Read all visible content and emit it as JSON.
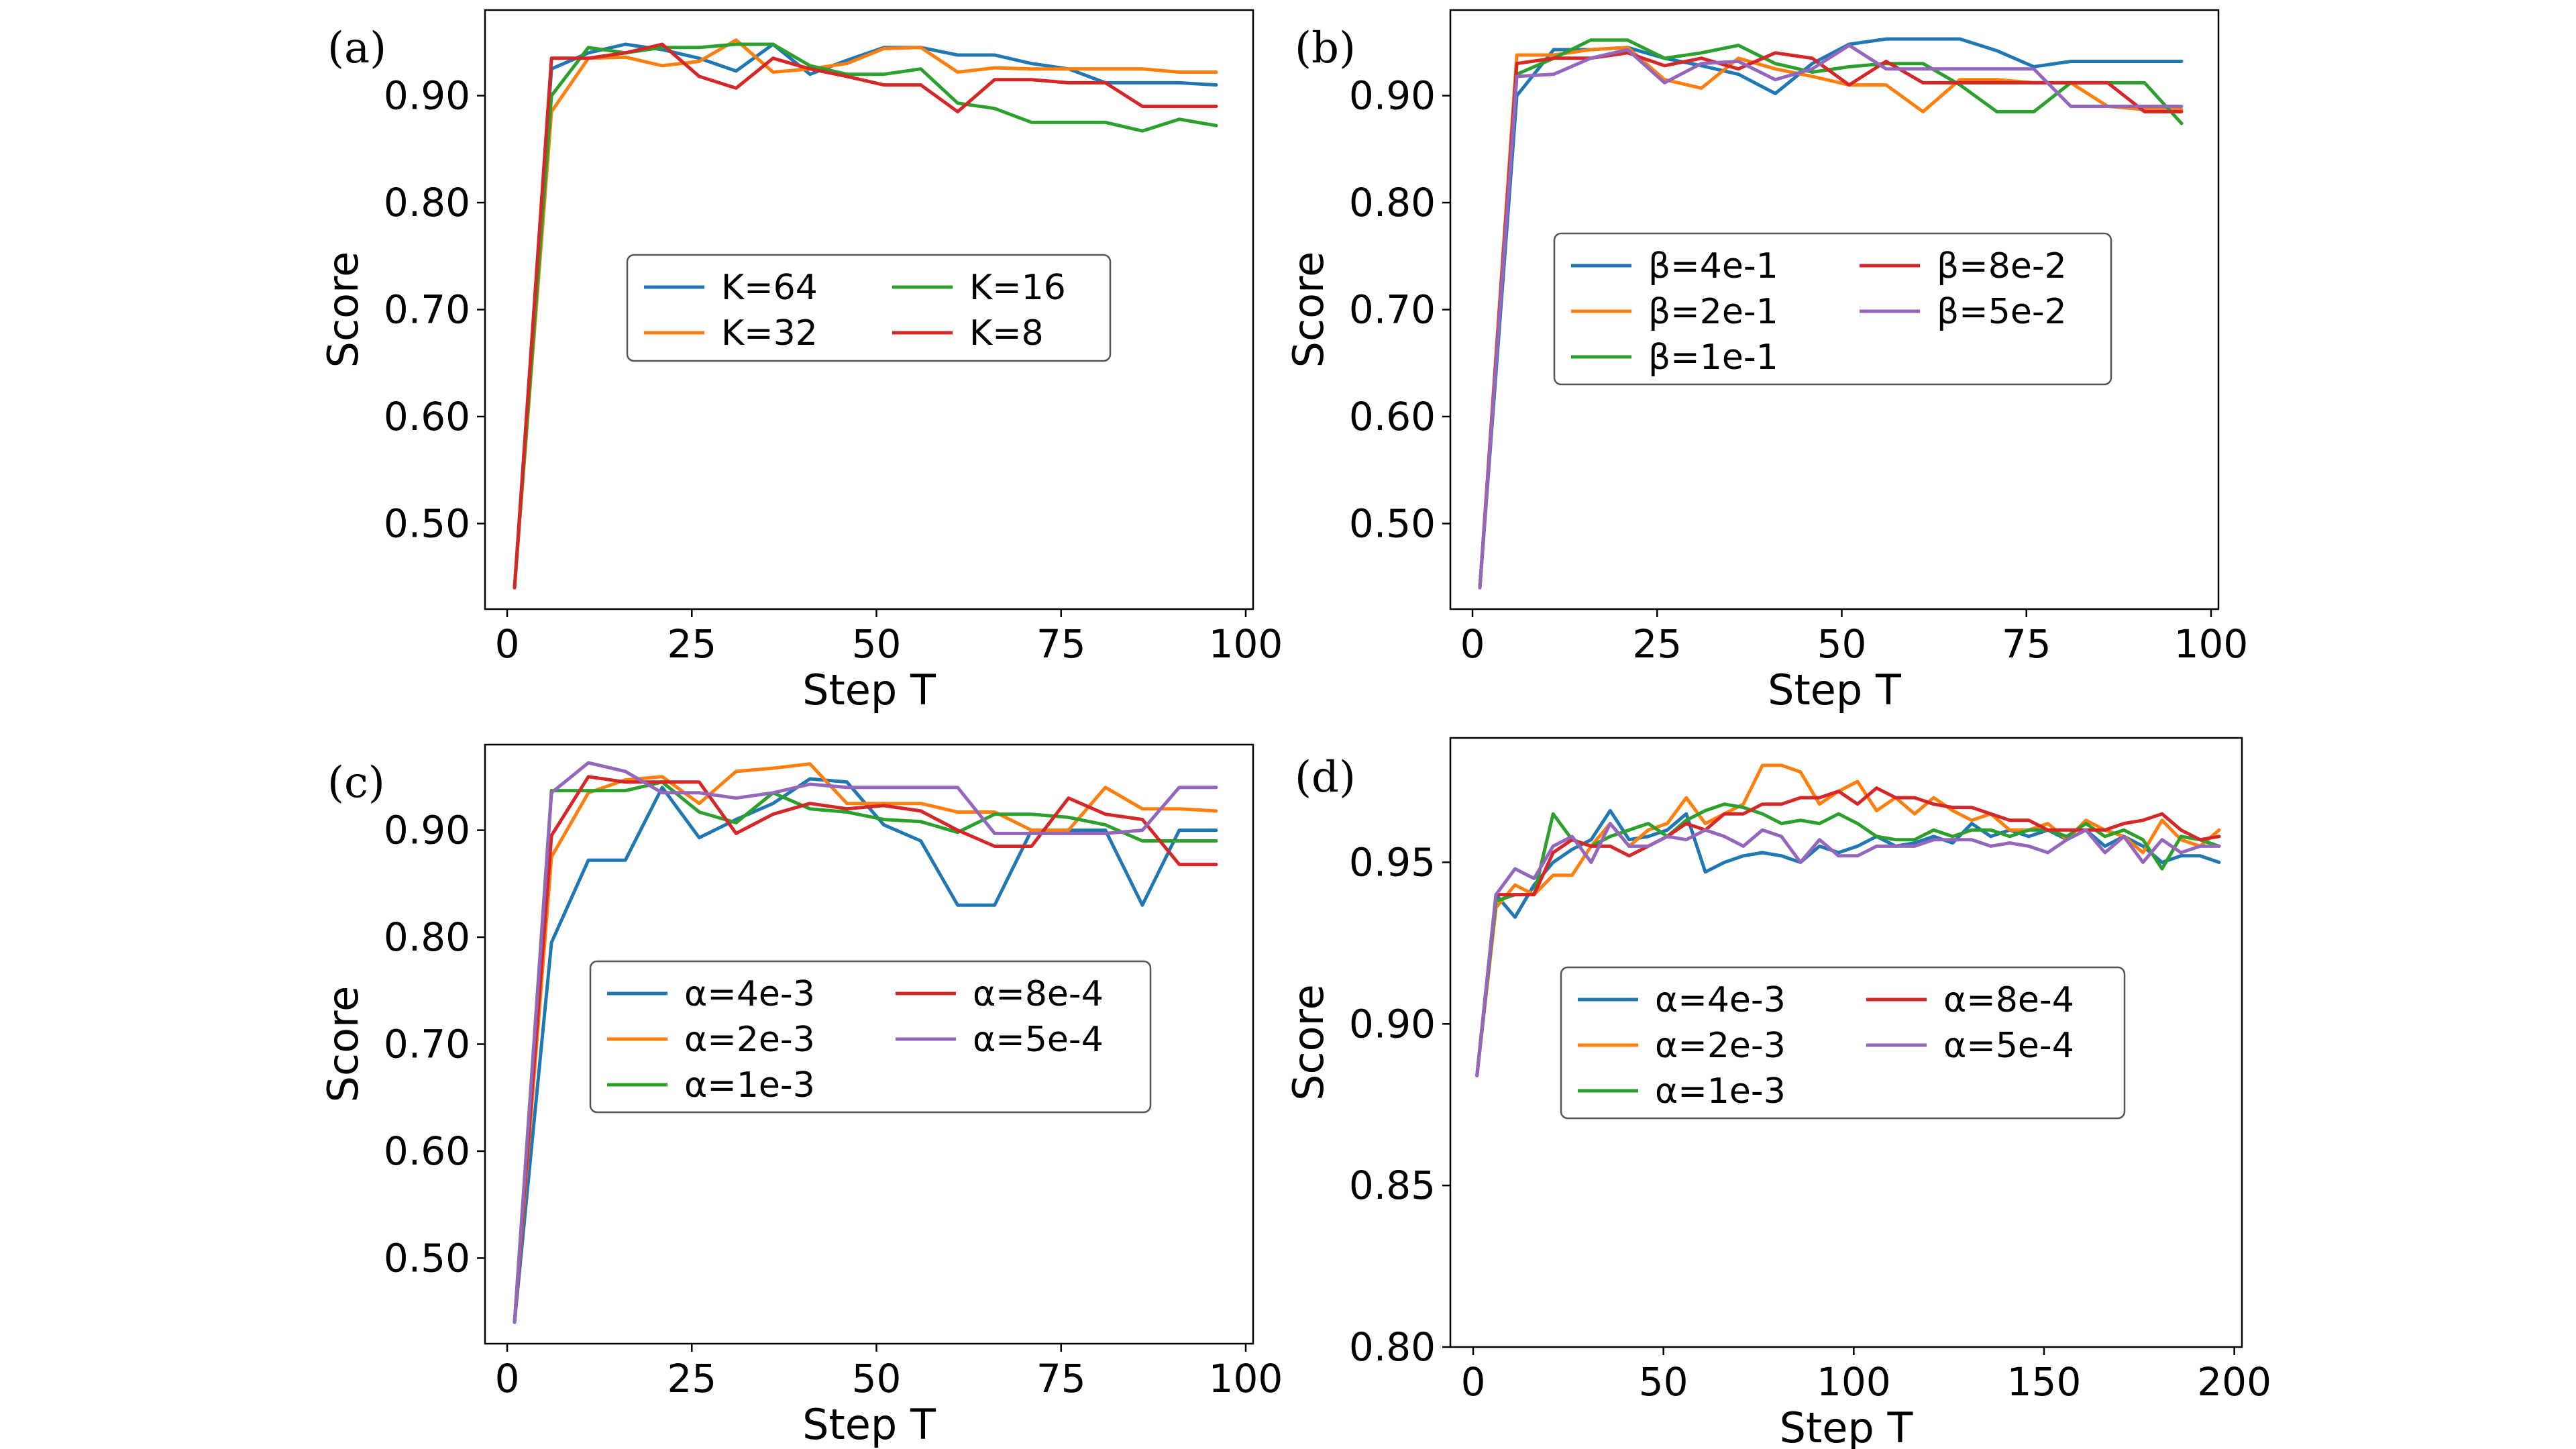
{
  "colors": {
    "blue": "#1f77b4",
    "orange": "#ff7f0e",
    "green": "#2ca02c",
    "red": "#d62728",
    "purple": "#9467bd"
  },
  "chart_data": [
    {
      "panel": "(a)",
      "type": "line",
      "xlabel": "Step T",
      "ylabel": "Score",
      "xlim": [
        -3,
        101
      ],
      "ylim": [
        0.42,
        0.98
      ],
      "xticks": [
        0,
        25,
        50,
        75,
        100
      ],
      "yticks": [
        0.5,
        0.6,
        0.7,
        0.8,
        0.9
      ],
      "ytick_labels": [
        "0.50",
        "0.60",
        "0.70",
        "0.80",
        "0.90"
      ],
      "legend_position": "center",
      "legend_columns": 2,
      "x": [
        1,
        6,
        11,
        16,
        21,
        26,
        31,
        36,
        41,
        46,
        51,
        56,
        61,
        66,
        71,
        76,
        81,
        86,
        91,
        96
      ],
      "series": [
        {
          "name": "K=64",
          "legend_label": "K=64",
          "color": "blue",
          "values": [
            0.44,
            0.925,
            0.94,
            0.948,
            0.943,
            0.935,
            0.923,
            0.948,
            0.92,
            0.933,
            0.945,
            0.945,
            0.938,
            0.938,
            0.93,
            0.925,
            0.912,
            0.912,
            0.912,
            0.91
          ]
        },
        {
          "name": "K=32",
          "legend_label": "K=32",
          "color": "orange",
          "values": [
            0.44,
            0.885,
            0.935,
            0.936,
            0.928,
            0.932,
            0.952,
            0.922,
            0.925,
            0.93,
            0.944,
            0.945,
            0.922,
            0.926,
            0.925,
            0.925,
            0.925,
            0.925,
            0.922,
            0.922
          ]
        },
        {
          "name": "K=16",
          "legend_label": "K=16",
          "color": "green",
          "values": [
            0.44,
            0.9,
            0.945,
            0.94,
            0.945,
            0.945,
            0.948,
            0.948,
            0.928,
            0.92,
            0.92,
            0.925,
            0.893,
            0.888,
            0.875,
            0.875,
            0.875,
            0.867,
            0.878,
            0.872
          ]
        },
        {
          "name": "K=8",
          "legend_label": "K=8",
          "color": "red",
          "values": [
            0.44,
            0.935,
            0.935,
            0.94,
            0.948,
            0.918,
            0.907,
            0.935,
            0.925,
            0.918,
            0.91,
            0.91,
            0.885,
            0.915,
            0.915,
            0.912,
            0.912,
            0.89,
            0.89,
            0.89
          ]
        }
      ]
    },
    {
      "panel": "(b)",
      "type": "line",
      "xlabel": "Step T",
      "ylabel": "Score",
      "xlim": [
        -3,
        101
      ],
      "ylim": [
        0.42,
        0.98
      ],
      "xticks": [
        0,
        25,
        50,
        75,
        100
      ],
      "yticks": [
        0.5,
        0.6,
        0.7,
        0.8,
        0.9
      ],
      "ytick_labels": [
        "0.50",
        "0.60",
        "0.70",
        "0.80",
        "0.90"
      ],
      "legend_position": "center",
      "legend_columns": 2,
      "x": [
        1,
        6,
        11,
        16,
        21,
        26,
        31,
        36,
        41,
        46,
        51,
        56,
        61,
        66,
        71,
        76,
        81,
        86,
        91,
        96
      ],
      "series": [
        {
          "name": "beta=4e-1",
          "legend_label": "β=4e-1",
          "color": "blue",
          "values": [
            0.44,
            0.9,
            0.943,
            0.943,
            0.945,
            0.935,
            0.928,
            0.92,
            0.902,
            0.93,
            0.948,
            0.953,
            0.953,
            0.953,
            0.942,
            0.927,
            0.932,
            0.932,
            0.932,
            0.932
          ]
        },
        {
          "name": "beta=2e-1",
          "legend_label": "β=2e-1",
          "color": "orange",
          "values": [
            0.44,
            0.938,
            0.938,
            0.943,
            0.945,
            0.915,
            0.907,
            0.935,
            0.925,
            0.918,
            0.91,
            0.91,
            0.885,
            0.915,
            0.915,
            0.912,
            0.912,
            0.89,
            0.887,
            0.887
          ]
        },
        {
          "name": "beta=1e-1",
          "legend_label": "β=1e-1",
          "color": "green",
          "values": [
            0.44,
            0.92,
            0.935,
            0.952,
            0.952,
            0.935,
            0.94,
            0.947,
            0.93,
            0.922,
            0.927,
            0.93,
            0.93,
            0.91,
            0.885,
            0.885,
            0.912,
            0.912,
            0.912,
            0.874
          ]
        },
        {
          "name": "beta=8e-2",
          "legend_label": "β=8e-2",
          "color": "red",
          "values": [
            0.44,
            0.93,
            0.935,
            0.935,
            0.94,
            0.928,
            0.935,
            0.925,
            0.94,
            0.935,
            0.91,
            0.932,
            0.912,
            0.912,
            0.912,
            0.912,
            0.912,
            0.912,
            0.885,
            0.885
          ]
        },
        {
          "name": "beta=5e-2",
          "legend_label": "β=5e-2",
          "color": "purple",
          "values": [
            0.44,
            0.918,
            0.92,
            0.935,
            0.943,
            0.912,
            0.93,
            0.932,
            0.915,
            0.925,
            0.947,
            0.925,
            0.925,
            0.925,
            0.925,
            0.925,
            0.89,
            0.89,
            0.89,
            0.89
          ]
        }
      ]
    },
    {
      "panel": "(c)",
      "type": "line",
      "xlabel": "Step T",
      "ylabel": "Score",
      "xlim": [
        -3,
        101
      ],
      "ylim": [
        0.42,
        0.98
      ],
      "xticks": [
        0,
        25,
        50,
        75,
        100
      ],
      "yticks": [
        0.5,
        0.6,
        0.7,
        0.8,
        0.9
      ],
      "ytick_labels": [
        "0.50",
        "0.60",
        "0.70",
        "0.80",
        "0.90"
      ],
      "legend_position": "center",
      "legend_columns": 2,
      "x": [
        1,
        6,
        11,
        16,
        21,
        26,
        31,
        36,
        41,
        46,
        51,
        56,
        61,
        66,
        71,
        76,
        81,
        86,
        91,
        96
      ],
      "series": [
        {
          "name": "alpha=4e-3",
          "legend_label": "α=4e-3",
          "color": "blue",
          "values": [
            0.44,
            0.795,
            0.872,
            0.872,
            0.94,
            0.893,
            0.91,
            0.925,
            0.948,
            0.945,
            0.905,
            0.89,
            0.83,
            0.83,
            0.9,
            0.9,
            0.9,
            0.83,
            0.9,
            0.9
          ]
        },
        {
          "name": "alpha=2e-3",
          "legend_label": "α=2e-3",
          "color": "orange",
          "values": [
            0.44,
            0.875,
            0.935,
            0.947,
            0.95,
            0.925,
            0.955,
            0.958,
            0.962,
            0.925,
            0.925,
            0.925,
            0.917,
            0.917,
            0.9,
            0.9,
            0.94,
            0.92,
            0.92,
            0.918
          ]
        },
        {
          "name": "alpha=1e-3",
          "legend_label": "α=1e-3",
          "color": "green",
          "values": [
            0.44,
            0.937,
            0.937,
            0.937,
            0.945,
            0.917,
            0.907,
            0.935,
            0.92,
            0.917,
            0.91,
            0.908,
            0.898,
            0.915,
            0.915,
            0.912,
            0.905,
            0.89,
            0.89,
            0.89
          ]
        },
        {
          "name": "alpha=8e-4",
          "legend_label": "α=8e-4",
          "color": "red",
          "values": [
            0.44,
            0.895,
            0.95,
            0.945,
            0.945,
            0.945,
            0.897,
            0.915,
            0.925,
            0.92,
            0.923,
            0.918,
            0.9,
            0.885,
            0.885,
            0.93,
            0.915,
            0.91,
            0.868,
            0.868
          ]
        },
        {
          "name": "alpha=5e-4",
          "legend_label": "α=5e-4",
          "color": "purple",
          "values": [
            0.44,
            0.935,
            0.963,
            0.955,
            0.935,
            0.935,
            0.93,
            0.935,
            0.943,
            0.94,
            0.94,
            0.94,
            0.94,
            0.897,
            0.897,
            0.897,
            0.897,
            0.9,
            0.94,
            0.94
          ]
        }
      ]
    },
    {
      "panel": "(d)",
      "type": "line",
      "xlabel": "Step T",
      "ylabel": "Score",
      "xlim": [
        -6,
        202
      ],
      "ylim": [
        0.8,
        0.9885
      ],
      "xticks": [
        0,
        50,
        100,
        150,
        200
      ],
      "yticks": [
        0.8,
        0.85,
        0.9,
        0.95
      ],
      "ytick_labels": [
        "0.80",
        "0.85",
        "0.90",
        "0.95"
      ],
      "legend_position": "center",
      "legend_columns": 2,
      "x": [
        1,
        6,
        11,
        16,
        21,
        26,
        31,
        36,
        41,
        46,
        51,
        56,
        61,
        66,
        71,
        76,
        81,
        86,
        91,
        96,
        101,
        106,
        111,
        116,
        121,
        126,
        131,
        136,
        141,
        146,
        151,
        156,
        161,
        166,
        171,
        176,
        181,
        186,
        191,
        196
      ],
      "series": [
        {
          "name": "alpha=4e-3",
          "legend_label": "α=4e-3",
          "color": "blue",
          "values": [
            0.884,
            0.94,
            0.933,
            0.943,
            0.95,
            0.954,
            0.957,
            0.966,
            0.957,
            0.958,
            0.96,
            0.965,
            0.947,
            0.95,
            0.952,
            0.953,
            0.952,
            0.95,
            0.955,
            0.953,
            0.955,
            0.958,
            0.955,
            0.956,
            0.958,
            0.956,
            0.962,
            0.958,
            0.96,
            0.958,
            0.96,
            0.957,
            0.96,
            0.955,
            0.958,
            0.955,
            0.95,
            0.952,
            0.952,
            0.95
          ]
        },
        {
          "name": "alpha=2e-3",
          "legend_label": "α=2e-3",
          "color": "orange",
          "values": [
            0.884,
            0.936,
            0.943,
            0.94,
            0.946,
            0.946,
            0.955,
            0.962,
            0.955,
            0.96,
            0.962,
            0.97,
            0.962,
            0.965,
            0.968,
            0.98,
            0.98,
            0.978,
            0.968,
            0.972,
            0.975,
            0.966,
            0.97,
            0.965,
            0.97,
            0.966,
            0.963,
            0.965,
            0.96,
            0.96,
            0.962,
            0.957,
            0.963,
            0.96,
            0.958,
            0.953,
            0.963,
            0.957,
            0.955,
            0.96
          ]
        },
        {
          "name": "alpha=1e-3",
          "legend_label": "α=1e-3",
          "color": "green",
          "values": [
            0.884,
            0.938,
            0.94,
            0.94,
            0.965,
            0.957,
            0.955,
            0.958,
            0.96,
            0.962,
            0.958,
            0.963,
            0.966,
            0.968,
            0.967,
            0.965,
            0.962,
            0.963,
            0.962,
            0.965,
            0.962,
            0.958,
            0.957,
            0.957,
            0.96,
            0.958,
            0.96,
            0.96,
            0.958,
            0.96,
            0.96,
            0.958,
            0.962,
            0.958,
            0.96,
            0.957,
            0.948,
            0.958,
            0.957,
            0.955
          ]
        },
        {
          "name": "alpha=8e-4",
          "legend_label": "α=8e-4",
          "color": "red",
          "values": [
            0.884,
            0.94,
            0.94,
            0.94,
            0.953,
            0.957,
            0.955,
            0.955,
            0.952,
            0.955,
            0.958,
            0.962,
            0.96,
            0.965,
            0.965,
            0.968,
            0.968,
            0.97,
            0.97,
            0.972,
            0.968,
            0.973,
            0.97,
            0.97,
            0.968,
            0.967,
            0.967,
            0.965,
            0.963,
            0.963,
            0.96,
            0.96,
            0.96,
            0.96,
            0.962,
            0.963,
            0.965,
            0.96,
            0.957,
            0.958
          ]
        },
        {
          "name": "alpha=5e-4",
          "legend_label": "α=5e-4",
          "color": "purple",
          "values": [
            0.884,
            0.94,
            0.948,
            0.945,
            0.955,
            0.958,
            0.95,
            0.962,
            0.955,
            0.955,
            0.958,
            0.957,
            0.96,
            0.958,
            0.955,
            0.96,
            0.958,
            0.95,
            0.957,
            0.952,
            0.952,
            0.955,
            0.955,
            0.955,
            0.957,
            0.957,
            0.957,
            0.955,
            0.956,
            0.955,
            0.953,
            0.957,
            0.96,
            0.953,
            0.958,
            0.95,
            0.957,
            0.953,
            0.955,
            0.955
          ]
        }
      ]
    }
  ]
}
